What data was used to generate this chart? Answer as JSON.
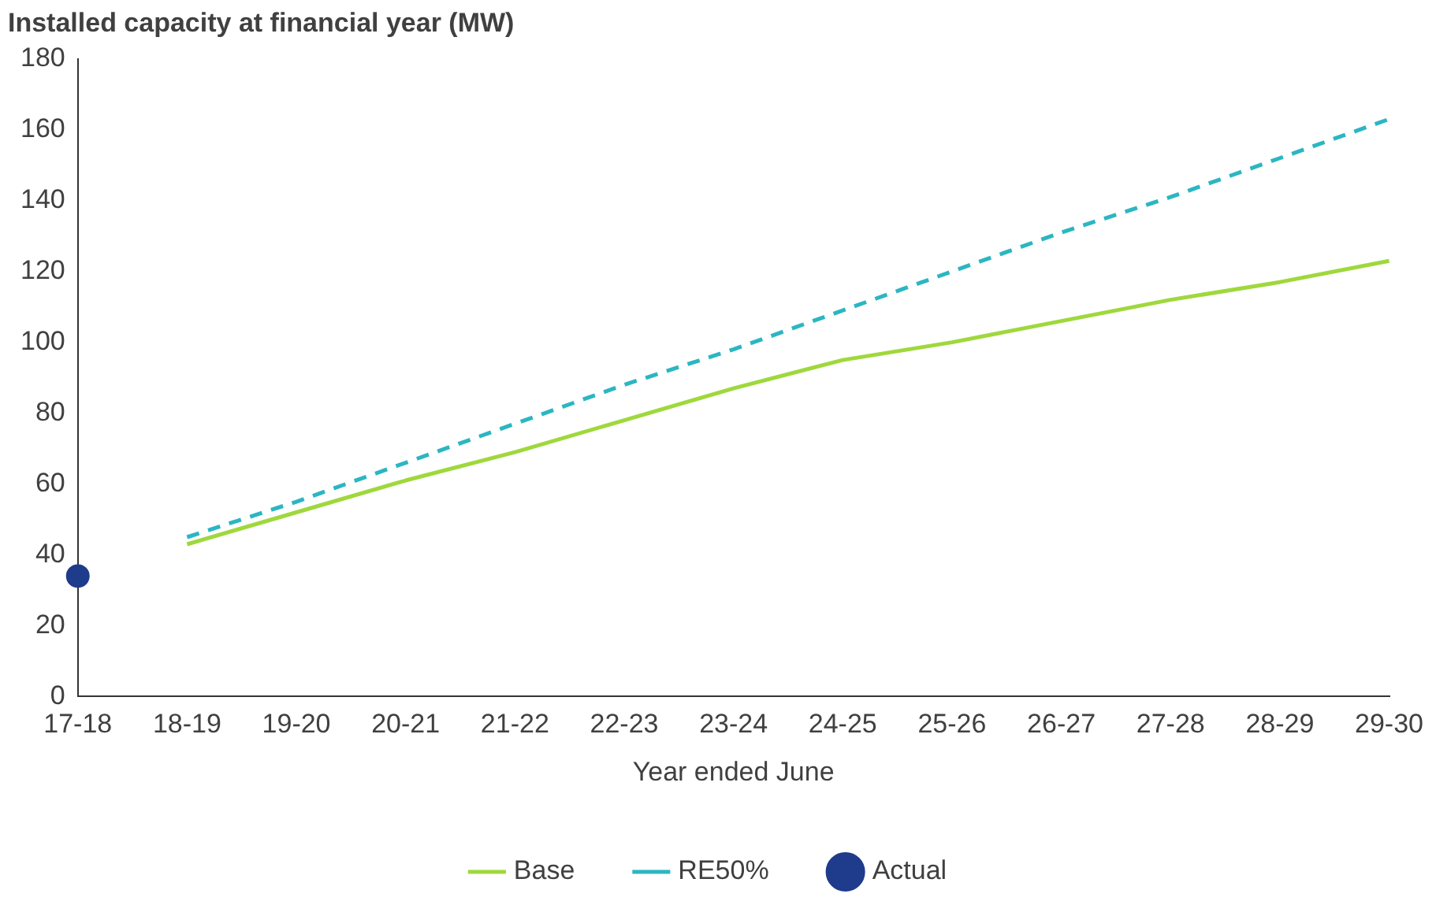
{
  "chart_data": {
    "type": "line",
    "ylabel": "Installed capacity at financial year (MW)",
    "xlabel": "Year ended June",
    "categories": [
      "17-18",
      "18-19",
      "19-20",
      "20-21",
      "21-22",
      "22-23",
      "23-24",
      "24-25",
      "25-26",
      "26-27",
      "27-28",
      "28-29",
      "29-30"
    ],
    "series": [
      {
        "name": "Base",
        "color": "#9fd83c",
        "line_style": "solid",
        "values": [
          null,
          43,
          52,
          61,
          69,
          78,
          87,
          95,
          100,
          106,
          112,
          117,
          123
        ]
      },
      {
        "name": "RE50%",
        "color": "#2bb6c2",
        "line_style": "dashed",
        "values": [
          null,
          45,
          55,
          66,
          77,
          88,
          98,
          109,
          120,
          131,
          141,
          152,
          163
        ]
      },
      {
        "name": "Actual",
        "type": "scatter",
        "marker": "circle",
        "color": "#1f3b8c",
        "values": [
          34,
          null,
          null,
          null,
          null,
          null,
          null,
          null,
          null,
          null,
          null,
          null,
          null
        ]
      }
    ],
    "ylim": [
      0,
      180
    ],
    "yticks": [
      0,
      20,
      40,
      60,
      80,
      100,
      120,
      140,
      160,
      180
    ],
    "grid": false,
    "legend": "bottom"
  }
}
